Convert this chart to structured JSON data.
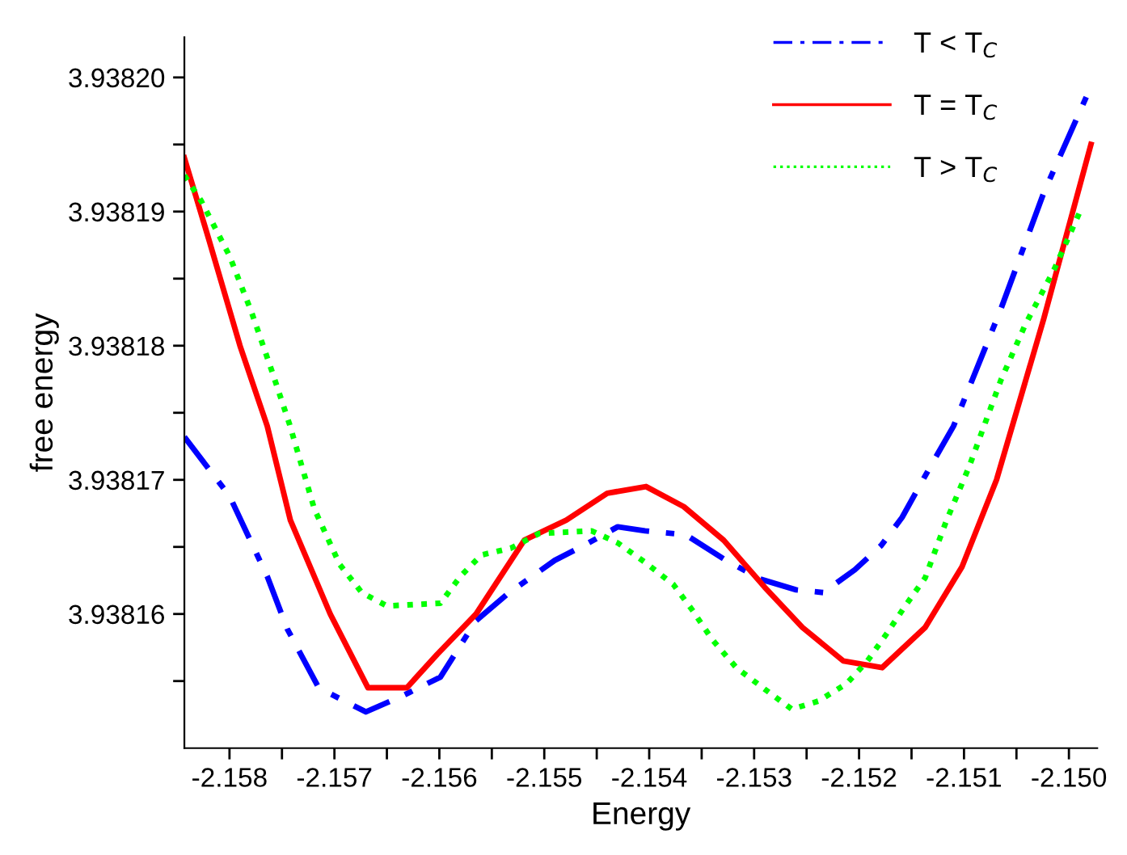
{
  "chart_data": {
    "type": "line",
    "xlabel": "Energy",
    "ylabel": "free energy",
    "xlim": [
      -2.15843,
      -2.14973
    ],
    "ylim": [
      3.93815,
      3.938203
    ],
    "xticks": [
      {
        "value": -2.158,
        "label": "-2.158"
      },
      {
        "value": -2.1575,
        "label": null
      },
      {
        "value": -2.157,
        "label": "-2.157"
      },
      {
        "value": -2.1565,
        "label": null
      },
      {
        "value": -2.156,
        "label": "-2.156"
      },
      {
        "value": -2.1555,
        "label": null
      },
      {
        "value": -2.155,
        "label": "-2.155"
      },
      {
        "value": -2.1545,
        "label": null
      },
      {
        "value": -2.154,
        "label": "-2.154"
      },
      {
        "value": -2.1535,
        "label": null
      },
      {
        "value": -2.153,
        "label": "-2.153"
      },
      {
        "value": -2.1525,
        "label": null
      },
      {
        "value": -2.152,
        "label": "-2.152"
      },
      {
        "value": -2.1515,
        "label": null
      },
      {
        "value": -2.151,
        "label": "-2.151"
      },
      {
        "value": -2.1505,
        "label": null
      },
      {
        "value": -2.15,
        "label": "-2.150"
      }
    ],
    "yticks": [
      {
        "value": 3.938155,
        "label": null
      },
      3.93816,
      {
        "value": 3.938165,
        "label": null
      },
      3.93817,
      {
        "value": 3.938175,
        "label": null
      },
      3.93818,
      {
        "value": 3.938185,
        "label": null
      },
      3.93819,
      {
        "value": 3.938195,
        "label": null
      },
      {
        "value": 3.9382,
        "label": "3.93820"
      }
    ],
    "grid": false,
    "legend": "top right",
    "marker": "none",
    "series": [
      {
        "name": "T < T$_{C}$",
        "color": "#0000ff",
        "line_style": "dashdot",
        "x": [
          -2.15843,
          -2.158,
          -2.15764,
          -2.15745,
          -2.15715,
          -2.1567,
          -2.15635,
          -2.15599,
          -2.15565,
          -2.15535,
          -2.1549,
          -2.1546,
          -2.1543,
          -2.15404,
          -2.15365,
          -2.15329,
          -2.15294,
          -2.1526,
          -2.15234,
          -2.15204,
          -2.15179,
          -2.15159,
          -2.15132,
          -2.1511,
          -2.15065,
          -2.15024,
          -2.14982
        ],
        "values": [
          3.9381732,
          3.9381688,
          3.9381628,
          3.9381589,
          3.9381545,
          3.9381527,
          3.9381539,
          3.9381553,
          3.9381595,
          3.9381615,
          3.938164,
          3.9381652,
          3.9381665,
          3.9381662,
          3.9381659,
          3.9381641,
          3.9381626,
          3.9381618,
          3.9381616,
          3.9381633,
          3.9381651,
          3.9381672,
          3.938171,
          3.938174,
          3.9381827,
          3.9381914,
          3.9381988
        ]
      },
      {
        "name": "T = T$_{C}$",
        "color": "#ff0000",
        "line_style": "solid",
        "x": [
          -2.15843,
          -2.1582,
          -2.1579,
          -2.15764,
          -2.15742,
          -2.15704,
          -2.15668,
          -2.15631,
          -2.15602,
          -2.15565,
          -2.15519,
          -2.15479,
          -2.1544,
          -2.15403,
          -2.15367,
          -2.15329,
          -2.1529,
          -2.15254,
          -2.15215,
          -2.15178,
          -2.15137,
          -2.15102,
          -2.15069,
          -2.15024,
          -2.14979
        ],
        "values": [
          3.938194,
          3.938188,
          3.93818,
          3.938174,
          3.938167,
          3.93816,
          3.9381545,
          3.9381545,
          3.938157,
          3.93816,
          3.9381655,
          3.938167,
          3.938169,
          3.9381695,
          3.938168,
          3.9381655,
          3.938162,
          3.938159,
          3.9381565,
          3.938156,
          3.938159,
          3.9381635,
          3.93817,
          3.938182,
          3.938195
        ]
      },
      {
        "name": "T > T$_{C}$",
        "color": "#00ff00",
        "line_style": "dotted",
        "x": [
          -2.15843,
          -2.15827,
          -2.158,
          -2.15779,
          -2.1576,
          -2.15743,
          -2.15719,
          -2.15695,
          -2.15674,
          -2.1565,
          -2.15599,
          -2.1558,
          -2.1556,
          -2.15532,
          -2.15505,
          -2.15455,
          -2.1543,
          -2.15403,
          -2.15377,
          -2.15359,
          -2.1534,
          -2.15317,
          -2.1529,
          -2.15264,
          -2.15239,
          -2.15212,
          -2.15192,
          -2.15174,
          -2.15156,
          -2.15137,
          -2.15117,
          -2.15095,
          -2.15065,
          -2.15042,
          -2.15014,
          -2.1499
        ],
        "values": [
          3.9381927,
          3.9381908,
          3.9381867,
          3.9381825,
          3.9381782,
          3.9381742,
          3.9381678,
          3.9381637,
          3.9381616,
          3.9381606,
          3.9381608,
          3.9381628,
          3.9381644,
          3.9381649,
          3.938166,
          3.9381662,
          3.9381653,
          3.9381638,
          3.9381622,
          3.9381603,
          3.9381581,
          3.938156,
          3.9381544,
          3.9381529,
          3.9381535,
          3.9381548,
          3.9381565,
          3.9381585,
          3.9381606,
          3.9381627,
          3.9381669,
          3.938171,
          3.9381774,
          3.9381815,
          3.9381857,
          3.9381899
        ]
      }
    ]
  }
}
